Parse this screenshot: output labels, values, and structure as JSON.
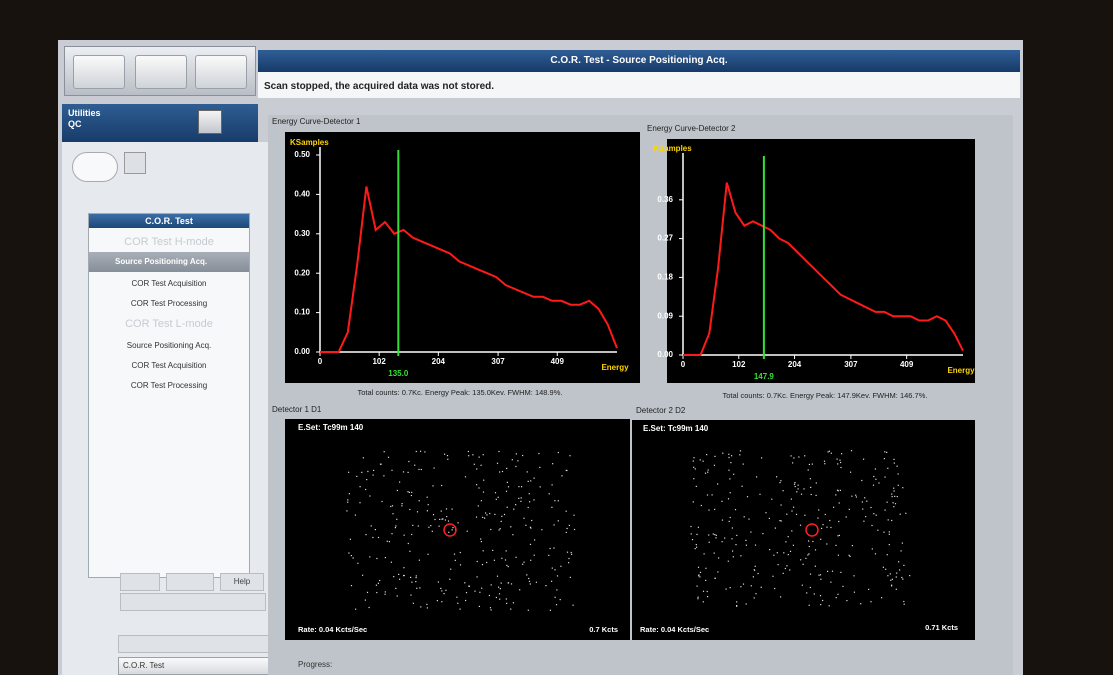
{
  "header": {
    "title": "C.O.R. Test  - Source Positioning Acq.",
    "status": "Scan stopped, the acquired data was not stored."
  },
  "sidebar": {
    "section": [
      "Utilities",
      "QC"
    ],
    "menu_title": "C.O.R. Test",
    "items": [
      "COR Test H-mode",
      "Source Positioning Acq.",
      "COR Test Acquisition",
      "COR Test Processing",
      "COR Test L-mode",
      "Source Positioning Acq.",
      "COR Test Acquisition",
      "COR Test Processing"
    ],
    "help_button": "Help",
    "dropdown": "C.O.R. Test"
  },
  "energy_panels": [
    {
      "title": "Energy Curve-Detector 1",
      "y_label": "KSamples",
      "x_label": "Energy",
      "ylim": [
        0,
        0.5
      ],
      "yticks": [
        {
          "value": 0,
          "label": "0.00"
        },
        {
          "value": 0.1,
          "label": "0.10"
        },
        {
          "value": 0.2,
          "label": "0.20"
        },
        {
          "value": 0.3,
          "label": "0.30"
        },
        {
          "value": 0.4,
          "label": "0.40"
        },
        {
          "value": 0.5,
          "label": "0.50"
        }
      ],
      "xlim": [
        0,
        512
      ],
      "xticks": [
        0,
        102,
        204,
        307,
        409
      ],
      "peak": {
        "value": 135,
        "label": "135.0"
      },
      "x": [
        0,
        16,
        32,
        48,
        64,
        80,
        96,
        112,
        128,
        144,
        160,
        176,
        192,
        208,
        224,
        240,
        256,
        272,
        288,
        304,
        320,
        336,
        352,
        368,
        384,
        400,
        416,
        432,
        448,
        464,
        480,
        496,
        512
      ],
      "values": [
        0,
        0,
        0,
        0.05,
        0.22,
        0.42,
        0.31,
        0.33,
        0.3,
        0.31,
        0.29,
        0.28,
        0.27,
        0.26,
        0.25,
        0.23,
        0.22,
        0.21,
        0.2,
        0.19,
        0.17,
        0.16,
        0.15,
        0.14,
        0.14,
        0.13,
        0.13,
        0.12,
        0.12,
        0.13,
        0.11,
        0.07,
        0.01
      ],
      "summary": "Total counts: 0.7Kc.  Energy Peak: 135.0Kev.  FWHM: 148.9%."
    },
    {
      "title": "Energy Curve-Detector 2",
      "y_label": "KSamples",
      "x_label": "Energy",
      "ylim": [
        0,
        0.45
      ],
      "yticks": [
        {
          "value": 0,
          "label": "0.00"
        },
        {
          "value": 0.09,
          "label": "0.09"
        },
        {
          "value": 0.18,
          "label": "0.18"
        },
        {
          "value": 0.27,
          "label": "0.27"
        },
        {
          "value": 0.36,
          "label": "0.36"
        }
      ],
      "xlim": [
        0,
        512
      ],
      "xticks": [
        0,
        102,
        204,
        307,
        409
      ],
      "peak": {
        "value": 147.9,
        "label": "147.9"
      },
      "x": [
        0,
        16,
        32,
        48,
        64,
        80,
        96,
        112,
        128,
        144,
        160,
        176,
        192,
        208,
        224,
        240,
        256,
        272,
        288,
        304,
        320,
        336,
        352,
        368,
        384,
        400,
        416,
        432,
        448,
        464,
        480,
        496,
        512
      ],
      "values": [
        0,
        0,
        0,
        0.05,
        0.2,
        0.4,
        0.33,
        0.3,
        0.31,
        0.3,
        0.29,
        0.27,
        0.26,
        0.24,
        0.22,
        0.2,
        0.18,
        0.16,
        0.14,
        0.13,
        0.12,
        0.11,
        0.1,
        0.1,
        0.09,
        0.09,
        0.09,
        0.08,
        0.08,
        0.09,
        0.08,
        0.05,
        0.01
      ],
      "summary": "Total counts: 0.7Kc.  Energy Peak: 147.9Kev.  FWHM: 146.7%."
    }
  ],
  "detector_views": [
    {
      "title": "Detector  1  D1",
      "energy_set": "E.Set: Tc99m 140",
      "rate": "Rate: 0.04 Kcts/Sec",
      "counts": "0.7 Kcts"
    },
    {
      "title": "Detector  2  D2",
      "energy_set": "E.Set: Tc99m 140",
      "rate": "Rate: 0.04 Kcts/Sec",
      "counts": "0.71 Kcts"
    }
  ],
  "progress_label": "Progress:"
}
